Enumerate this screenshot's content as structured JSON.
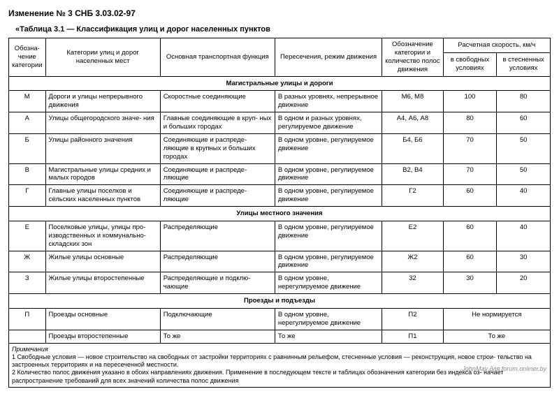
{
  "doc_title": "Изменение № 3 СНБ 3.03.02-97",
  "table_caption": "«Таблица 3.1 — Классификация улиц и дорог населенных пунктов",
  "headers": {
    "code": "Обозна-\nчение\nкатегории",
    "category": "Категории улиц и дорог\nнаселенных мест",
    "function": "Основная транспортная функция",
    "intersections": "Пересечения,\nрежим движения",
    "designation": "Обозначение\nкатегории\nи количество\nполос движения",
    "speed_group": "Расчетная скорость, км/ч",
    "speed_free": "в свободных\nусловиях",
    "speed_tight": "в стесненных\nусловиях"
  },
  "sections": [
    {
      "title": "Магистральные улицы и дороги",
      "rows": [
        {
          "code": "М",
          "cat": "Дороги и улицы непрерывного движения",
          "func": "Скоростные соединяющие",
          "int": "В разных уровнях,\nнепрерывное движение",
          "des": "М6, М8",
          "s1": "100",
          "s2": "80"
        },
        {
          "code": "А",
          "cat": "Улицы общегородского значе-\nния",
          "func": "Главные соединяющие в круп-\nных и больших городах",
          "int": "В одном и разных уровнях,\nрегулируемое движение",
          "des": "А4, А6, А8",
          "s1": "80",
          "s2": "60"
        },
        {
          "code": "Б",
          "cat": "Улицы районного значения",
          "func": "Соединяющие и распреде-\nляющие в крупных и больших городах",
          "int": "В одном уровне,\nрегулируемое движение",
          "des": "Б4, Б6",
          "s1": "70",
          "s2": "50"
        },
        {
          "code": "В",
          "cat": "Магистральные улицы средних и малых городов",
          "func": "Соединяющие и распреде-\nляющие",
          "int": "В одном уровне,\nрегулируемое движение",
          "des": "В2, В4",
          "s1": "70",
          "s2": "50"
        },
        {
          "code": "Г",
          "cat": "Главные улицы поселков и сельских населенных пунктов",
          "func": "Соединяющие и распреде-\nляющие",
          "int": "В одном уровне,\nрегулируемое движение",
          "des": "Г2",
          "s1": "60",
          "s2": "40"
        }
      ]
    },
    {
      "title": "Улицы местного значения",
      "rows": [
        {
          "code": "Е",
          "cat": "Поселковые улицы, улицы про-\nизводственных и коммунально-\nскладских зон",
          "func": "Распределяющие",
          "int": "В одном уровне,\nрегулируемое движение",
          "des": "Е2",
          "s1": "60",
          "s2": "40"
        },
        {
          "code": "Ж",
          "cat": "Жилые улицы основные",
          "func": "Распределяющие",
          "int": "В одном уровне,\nрегулируемое движение",
          "des": "Ж2",
          "s1": "60",
          "s2": "30"
        },
        {
          "code": "З",
          "cat": "Жилые улицы второстепенные",
          "func": "Распределяющие и подклю-\nчающие",
          "int": "В одном уровне,\nнерегулируемое движение",
          "des": "32",
          "s1": "30",
          "s2": "20"
        }
      ]
    },
    {
      "title": "Проезды и подъезды",
      "rows": [
        {
          "code": "П",
          "cat": "Проезды основные",
          "func": "Подключающие",
          "int": "В одном уровне,\nнерегулируемое движение",
          "des": "П2",
          "merged_speed": "Не нормируется"
        },
        {
          "code": "",
          "cat": "Проезды второстепенные",
          "func": "То же",
          "int": "То же",
          "des": "П1",
          "merged_speed": "То же"
        }
      ]
    }
  ],
  "notes": {
    "header": "Примечания",
    "n1": "1 Свободные условия — новое строительство на свободных от застройки территориях с равнинным рельефом, стесненные условия — реконструкция, новое строи-\nтельство на застроенных территориях и на пересеченной местности.",
    "n2": "2 Количество полос движения указано в обоих направлениях движения. Применение в последующем тексте и таблицах обозначения категории без индекса оз-\nначает распространение требований для всех значений количества полос движения"
  },
  "watermark": "JohnMay для forum.onliner.by"
}
